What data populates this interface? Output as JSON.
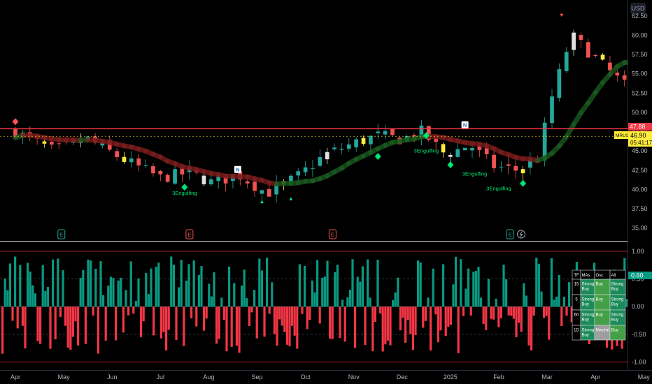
{
  "currency": "USD",
  "symbol": "MRUS",
  "last_price": "46.90",
  "countdown": "05:41:17",
  "resistance_label": "47.88",
  "osc_value_label": "0.60",
  "price_ticks": [
    "62.50",
    "60.00",
    "57.50",
    "55.00",
    "52.50",
    "50.00",
    "47.50",
    "45.00",
    "42.50",
    "40.00",
    "37.50",
    "35.00"
  ],
  "osc_ticks": [
    "1.00",
    "0.50",
    "0.00",
    "-0.50",
    "-1.00"
  ],
  "time_ticks": [
    "Apr",
    "May",
    "Jun",
    "Jul",
    "Aug",
    "Sep",
    "Oct",
    "Nov",
    "Dec",
    "2025",
    "Feb",
    "Mar",
    "Apr",
    "May"
  ],
  "earnings_marker": "E",
  "colors": {
    "up": "#26a69a",
    "down": "#ef5350",
    "resistance": "#f23645",
    "signal_up": "#00e676",
    "signal_down": "#ff5252",
    "accent_yellow": "#ffeb3b"
  },
  "signals": {
    "label": "3Engulfing",
    "top_text": [
      {
        "text": "3Engulfing",
        "time": 17.5,
        "price": 62.9
      },
      {
        "text": "3Engulfing",
        "time": 41.5,
        "price": 54.3
      },
      {
        "text": "3Engulfing",
        "time": 91.5,
        "price": 45.9
      },
      {
        "text": "Engulfing",
        "time": -1,
        "price": 50.2
      }
    ],
    "bottom_text": [
      {
        "text": "3Engulfing",
        "time": 3.5,
        "price": 39.3
      },
      {
        "text": "3Engulfing",
        "time": 8.5,
        "price": 44.8
      },
      {
        "text": "3Engulfing",
        "time": 9.5,
        "price": 41.8
      },
      {
        "text": "3Engulfing",
        "time": 10,
        "price": 39.9
      },
      {
        "text": "3Engulfing",
        "time": 15.5,
        "price": 49.6
      },
      {
        "text": "3Engulfing",
        "time": 28.5,
        "price": 45.4
      },
      {
        "text": "3Engulfing",
        "time": 41.5,
        "price": 41.2
      },
      {
        "text": "3Engulfing",
        "time": 46.5,
        "price": 38.6
      },
      {
        "text": "3Engulfing",
        "time": 55.5,
        "price": 36.5
      }
    ],
    "diamonds_up": [
      [
        3.5,
        40.3
      ],
      [
        7.5,
        44.3
      ],
      [
        8.5,
        47.0
      ],
      [
        9,
        43.2
      ],
      [
        10.5,
        40.8
      ],
      [
        15.5,
        51.0
      ],
      [
        29,
        47.2
      ],
      [
        41.5,
        42.8
      ],
      [
        46.5,
        39.9
      ],
      [
        55.3,
        37.9
      ]
    ],
    "diamonds_down": [
      [
        0,
        48.8
      ],
      [
        19.7,
        60.8
      ],
      [
        20.9,
        58.5
      ],
      [
        24.5,
        53.3
      ],
      [
        51.9,
        43.0
      ]
    ],
    "triangles_down": [
      [
        11.3,
        62.6
      ],
      [
        14.5,
        61.7
      ],
      [
        17.5,
        63.9
      ],
      [
        39.7,
        57.8
      ],
      [
        57,
        50.4
      ],
      [
        58.3,
        49.6
      ]
    ],
    "triangles_up": [
      [
        5.1,
        38.4
      ],
      [
        5.7,
        38.8
      ]
    ],
    "boxes": [
      [
        4.6,
        42.6,
        "N",
        "white"
      ],
      [
        9.3,
        48.4,
        "N",
        "white"
      ],
      [
        13.4,
        49.6,
        "P",
        "yellow"
      ],
      [
        28.2,
        52.9,
        "N",
        "white"
      ],
      [
        30.5,
        52.1,
        "N",
        "white"
      ],
      [
        33,
        48.2,
        "P",
        "yellow"
      ],
      [
        35.8,
        53.3,
        "N",
        "white"
      ],
      [
        36.2,
        50.4,
        "P",
        "yellow"
      ],
      [
        43,
        47.7,
        "N",
        "white"
      ],
      [
        46.5,
        45.2,
        "N",
        "white"
      ],
      [
        50.1,
        40.2,
        "P",
        "yellow"
      ],
      [
        51.1,
        41.2,
        "N",
        "white"
      ]
    ]
  },
  "signal_table": {
    "headers": [
      "TF",
      "MAs",
      "Osc",
      "All"
    ],
    "rows": [
      {
        "tf": "15",
        "mas": "Strong Buy",
        "osc": "Buy",
        "all": "Strong Buy"
      },
      {
        "tf": "5",
        "mas": "Strong Buy",
        "osc": "Buy",
        "all": "Strong Buy"
      },
      {
        "tf": "60",
        "mas": "Strong Buy",
        "osc": "Buy",
        "all": "Strong Buy"
      },
      {
        "tf": "1D",
        "mas": "Strong Buy",
        "osc": "Neutral",
        "all": "Buy"
      }
    ]
  },
  "chart_data": {
    "type": "candlestick",
    "time_axis_labels": [
      "Apr",
      "May",
      "Jun",
      "Jul",
      "Aug",
      "Sep",
      "Oct",
      "Nov",
      "Dec",
      "2025",
      "Feb",
      "Mar",
      "Apr",
      "May"
    ],
    "price_axis": {
      "ylim": [
        33.8,
        64.2
      ],
      "ticks": [
        35,
        37.5,
        40,
        42.5,
        45,
        47.5,
        50,
        52.5,
        55,
        57.5,
        60,
        62.5
      ]
    },
    "resistance_level": 47.88,
    "last_price": 46.9,
    "price_path": [
      [
        0,
        47.5
      ],
      [
        0.8,
        45
      ],
      [
        1.5,
        46.5
      ],
      [
        2.2,
        44
      ],
      [
        3,
        41.5
      ],
      [
        3.6,
        42.2
      ],
      [
        4.1,
        40.8
      ],
      [
        4.6,
        42
      ],
      [
        5.2,
        39.5
      ],
      [
        5.8,
        41.5
      ],
      [
        6.4,
        44.5
      ],
      [
        7,
        46
      ],
      [
        7.5,
        47
      ],
      [
        8,
        46.5
      ],
      [
        8.4,
        47.5
      ],
      [
        8.9,
        44.5
      ],
      [
        9.4,
        45.8
      ],
      [
        9.9,
        43
      ],
      [
        10.4,
        42.5
      ],
      [
        10.8,
        44
      ],
      [
        11.1,
        52
      ],
      [
        11.5,
        60
      ],
      [
        12,
        57
      ],
      [
        12.6,
        53.5
      ],
      [
        13.2,
        51.5
      ],
      [
        13.8,
        53
      ],
      [
        14.5,
        57
      ],
      [
        15.2,
        54
      ],
      [
        15.8,
        52.5
      ],
      [
        16.5,
        55.5
      ],
      [
        17.2,
        57
      ],
      [
        17.8,
        55
      ],
      [
        18.4,
        53.5
      ],
      [
        19,
        56
      ],
      [
        19.6,
        58
      ],
      [
        20.2,
        56.5
      ],
      [
        20.7,
        55
      ],
      [
        21.3,
        56
      ],
      [
        22,
        54
      ],
      [
        22.6,
        52.5
      ],
      [
        23.3,
        51.5
      ],
      [
        24,
        48.5
      ],
      [
        24.6,
        47.8
      ],
      [
        25.3,
        49.5
      ],
      [
        26,
        51.5
      ],
      [
        26.6,
        53
      ],
      [
        27.2,
        54
      ],
      [
        27.8,
        52.5
      ],
      [
        28.4,
        51
      ],
      [
        29,
        49.5
      ],
      [
        29.8,
        51
      ],
      [
        30.5,
        50
      ],
      [
        31.2,
        48.5
      ],
      [
        31.9,
        47.5
      ],
      [
        32.6,
        48.5
      ],
      [
        33.3,
        50
      ],
      [
        34,
        51.5
      ],
      [
        34.7,
        52.5
      ],
      [
        35.4,
        53
      ],
      [
        36.2,
        51.5
      ],
      [
        37,
        52.5
      ],
      [
        37.7,
        51
      ],
      [
        38.3,
        53
      ],
      [
        39,
        54.5
      ],
      [
        39.6,
        52.5
      ],
      [
        40.1,
        50
      ],
      [
        40.6,
        45.5
      ],
      [
        41.2,
        43.5
      ],
      [
        41.8,
        44.5
      ],
      [
        42.4,
        46
      ],
      [
        43,
        44.5
      ],
      [
        43.6,
        43
      ],
      [
        44.2,
        43.5
      ],
      [
        44.8,
        42.5
      ],
      [
        45.5,
        43
      ],
      [
        46.1,
        41.5
      ],
      [
        46.7,
        42.5
      ],
      [
        47.3,
        42
      ],
      [
        47.9,
        43
      ],
      [
        48.5,
        42.5
      ],
      [
        49.1,
        41.5
      ],
      [
        49.7,
        40.5
      ],
      [
        50.3,
        40.5
      ],
      [
        50.9,
        41
      ],
      [
        51.5,
        40.5
      ],
      [
        52.1,
        40.5
      ],
      [
        52.7,
        41
      ],
      [
        53.3,
        40.2
      ],
      [
        53.9,
        40.8
      ],
      [
        54.5,
        40.5
      ],
      [
        55.1,
        40.5
      ],
      [
        55.6,
        42
      ],
      [
        56,
        44
      ],
      [
        56.5,
        46.5
      ],
      [
        57,
        47.8
      ],
      [
        57.5,
        46.2
      ],
      [
        58,
        47.2
      ],
      [
        58.5,
        45.5
      ],
      [
        59,
        46
      ],
      [
        59.4,
        46.9
      ]
    ],
    "oscillator": {
      "ylim": [
        -1.12,
        1.15
      ],
      "ticks": [
        1.0,
        0.5,
        0.0,
        -0.5,
        -1.0
      ],
      "last_value": 0.6
    }
  }
}
